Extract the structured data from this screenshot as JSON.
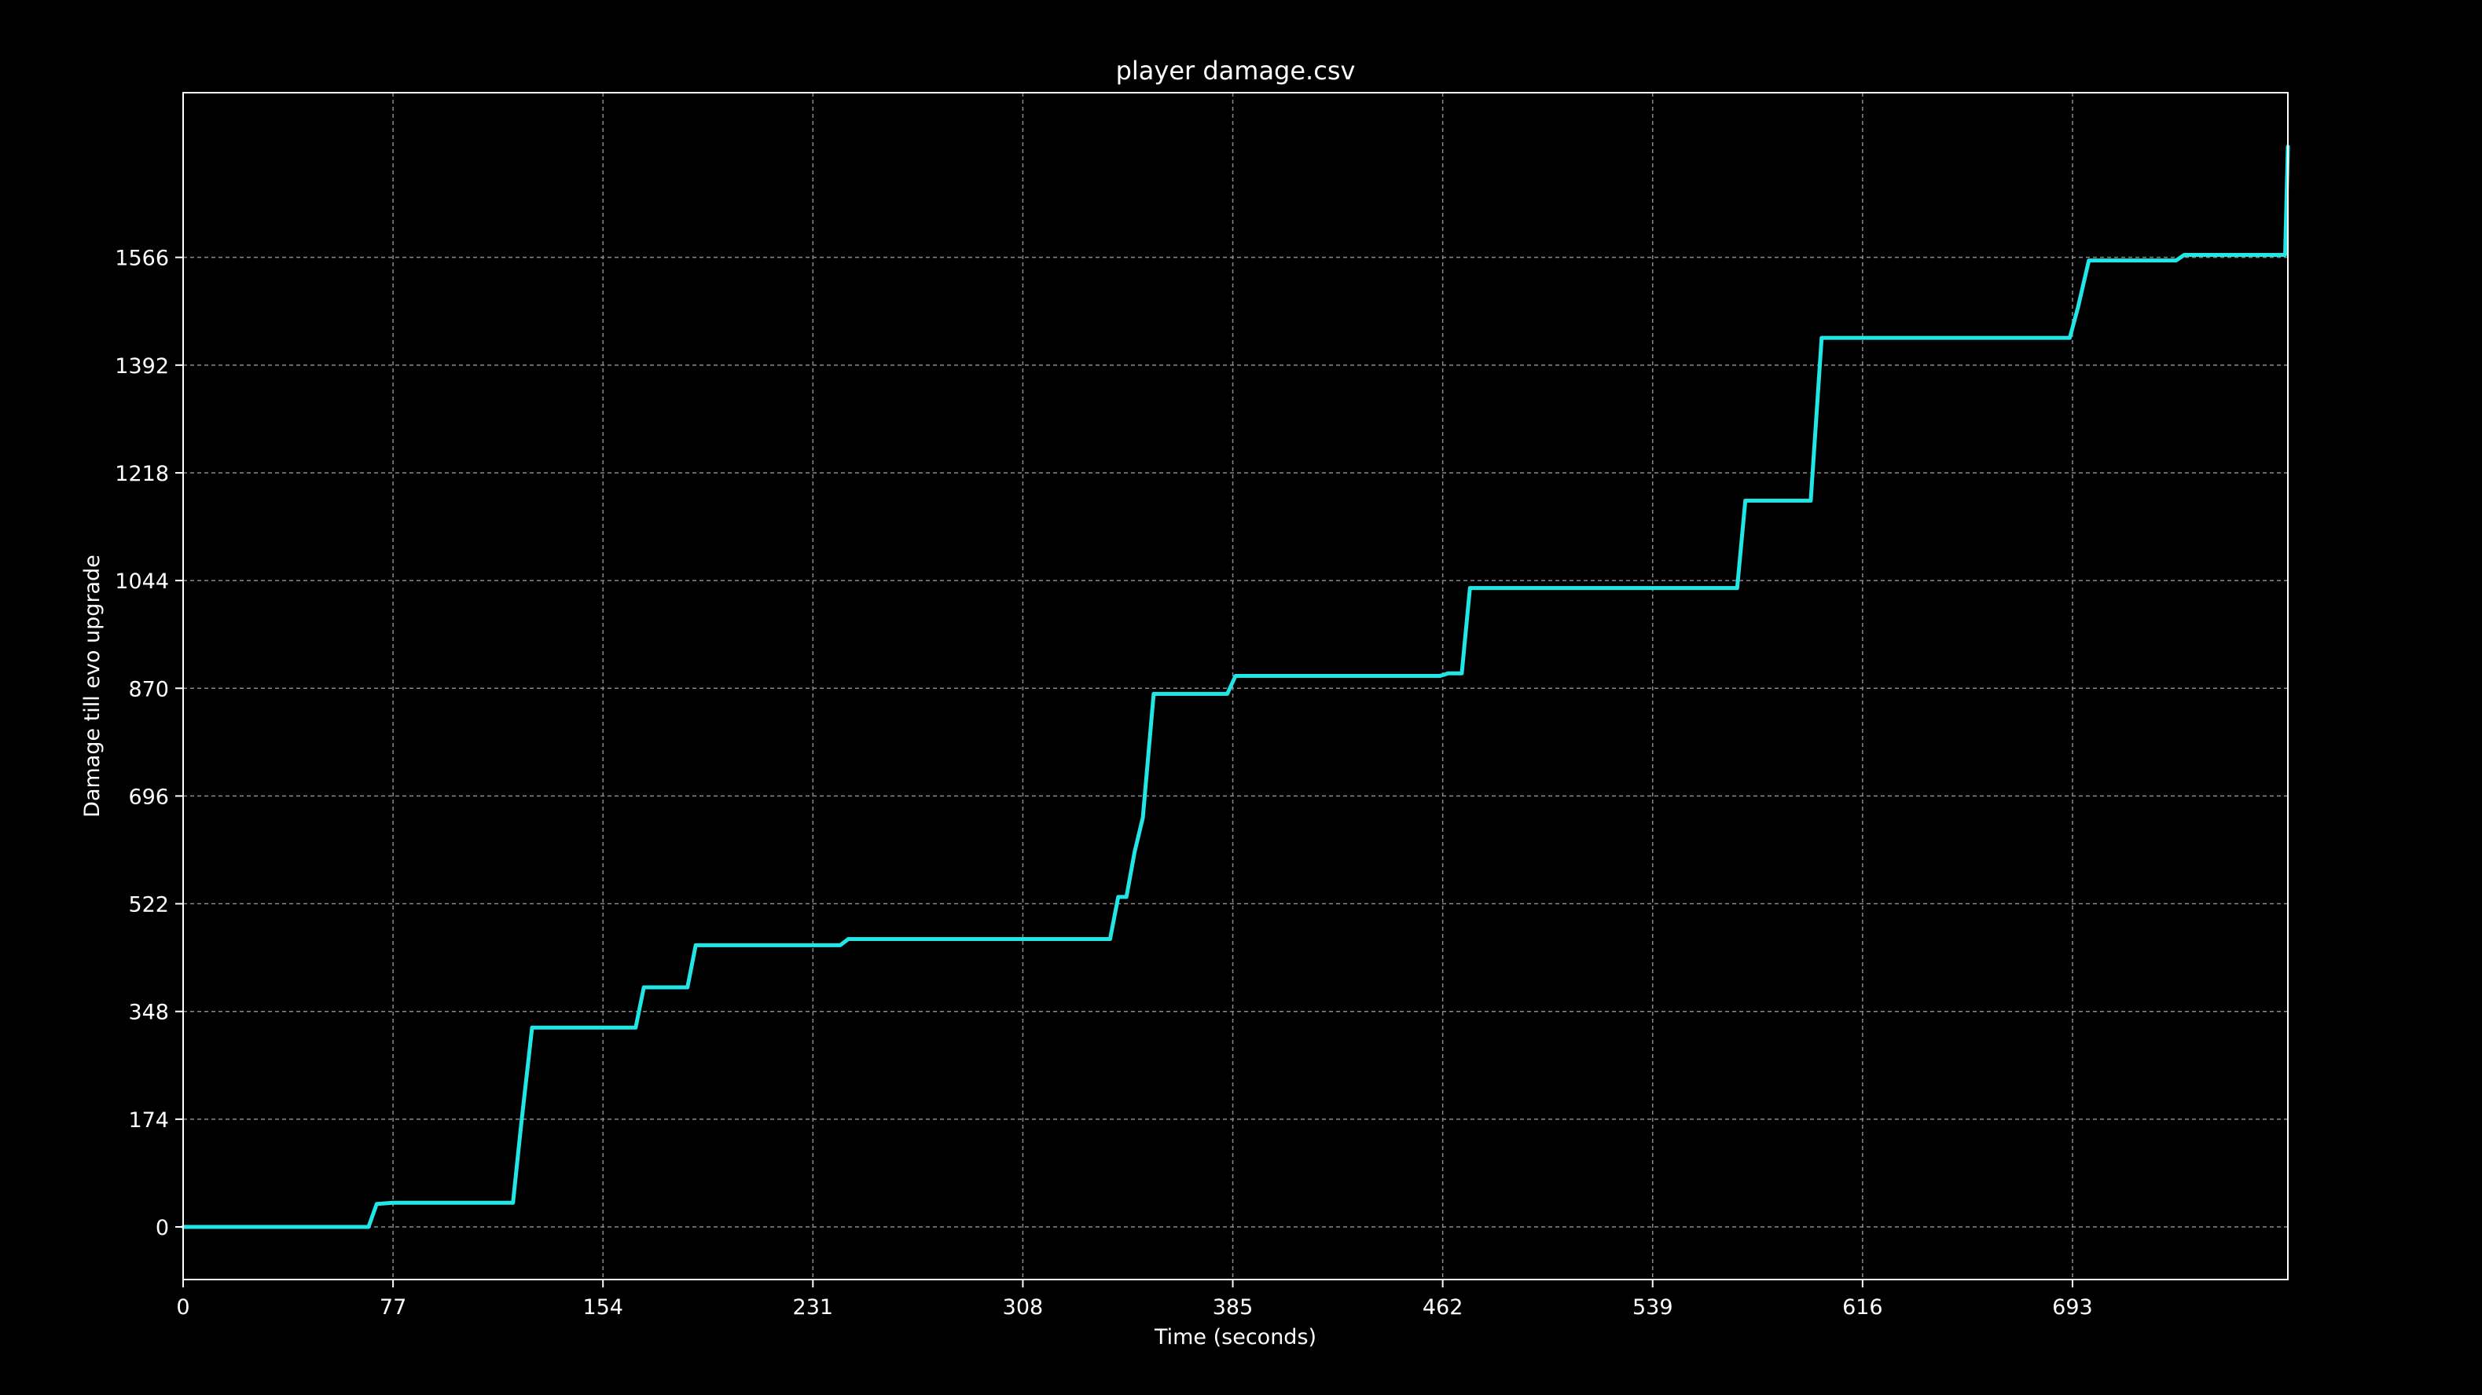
{
  "chart_data": {
    "type": "line",
    "title": "player damage.csv",
    "xlabel": "Time (seconds)",
    "ylabel": "Damage till evo upgrade",
    "xlim": [
      0,
      772
    ],
    "ylim": [
      -85,
      1832
    ],
    "x_ticks": [
      0,
      77,
      154,
      231,
      308,
      385,
      462,
      539,
      616,
      693
    ],
    "x_tick_labels": [
      "0",
      "77",
      "154",
      "231",
      "308",
      "385",
      "462",
      "539",
      "616",
      "693"
    ],
    "y_ticks": [
      0,
      174,
      348,
      522,
      696,
      870,
      1044,
      1218,
      1392,
      1566
    ],
    "y_tick_labels": [
      "0",
      "174",
      "348",
      "522",
      "696",
      "870",
      "1044",
      "1218",
      "1392",
      "1566"
    ],
    "grid": true,
    "legend": "none",
    "series": [
      {
        "color": "#22e6e6",
        "x": [
          0,
          68,
          71,
          77,
          121,
          124,
          128,
          166,
          169,
          185,
          188,
          241,
          244,
          340,
          343,
          346,
          349,
          352,
          356,
          383,
          386,
          461,
          464,
          469,
          472,
          570,
          573,
          597,
          601,
          692,
          695,
          699,
          731,
          734,
          771,
          772
        ],
        "y": [
          0,
          0,
          37,
          39,
          39,
          165,
          322,
          322,
          387,
          387,
          455,
          455,
          465,
          465,
          533,
          533,
          606,
          661,
          861,
          861,
          890,
          890,
          894,
          894,
          1032,
          1032,
          1173,
          1173,
          1436,
          1436,
          1485,
          1561,
          1561,
          1570,
          1570,
          1745
        ]
      }
    ]
  }
}
